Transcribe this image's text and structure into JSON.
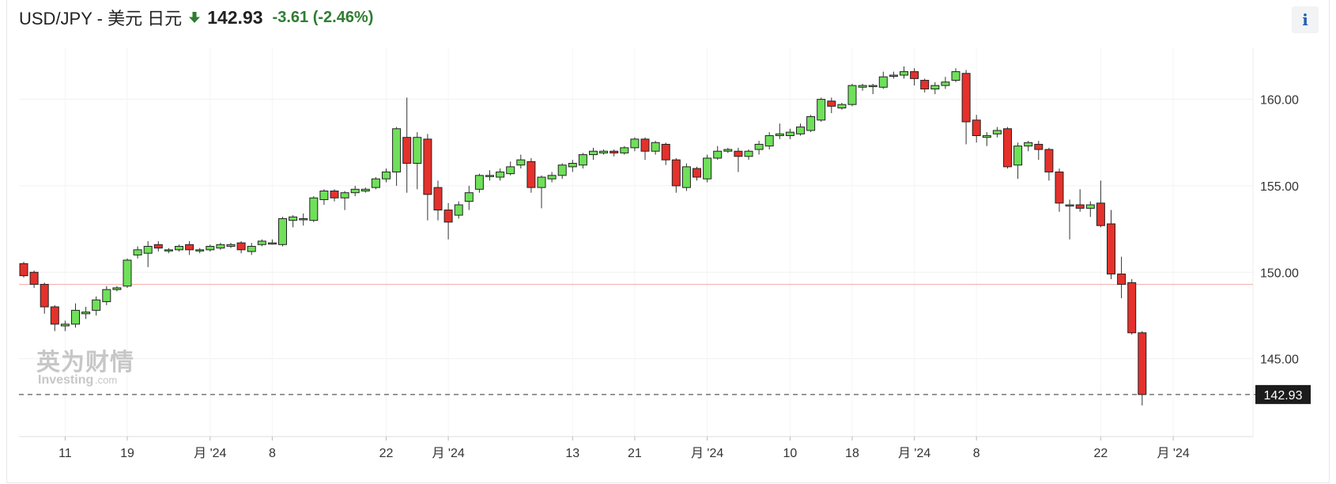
{
  "header": {
    "title": "USD/JPY - 美元 日元",
    "arrow_icon": "arrow-down-icon",
    "price": "142.93",
    "change": "-3.61 (-2.46%)",
    "change_color": "#2e7d32",
    "info_label": "i"
  },
  "colors": {
    "up": "#6fe05a",
    "down": "#e5312b",
    "ref_line": "#f2a9a9"
  },
  "watermark": {
    "line1": "英为财情",
    "line2": "Investing",
    "line3": ".com"
  },
  "chart_data": {
    "type": "candlestick",
    "title": "USD/JPY - 美元 日元",
    "ylim": [
      140.5,
      163
    ],
    "y_ticks": [
      145,
      150,
      155,
      160
    ],
    "y_tick_labels": [
      "145.00",
      "150.00",
      "155.00",
      "160.00"
    ],
    "x_tick_labels": [
      "11",
      "19",
      "月 '24",
      "8",
      "22",
      "月 '24",
      "13",
      "21",
      "月 '24",
      "10",
      "18",
      "月 '24",
      "8",
      "22",
      "月 '24"
    ],
    "x_tick_index": [
      4,
      10,
      18,
      24,
      35,
      41,
      53,
      59,
      66,
      74,
      80,
      86,
      92,
      104,
      111
    ],
    "reference_line": 149.3,
    "last_price": 142.93,
    "last_price_label": "142.93",
    "candles": [
      [
        150.5,
        149.8,
        150.6,
        149.7
      ],
      [
        150.0,
        149.3,
        150.1,
        149.1
      ],
      [
        149.3,
        148.0,
        149.4,
        147.6
      ],
      [
        148.0,
        147.0,
        148.1,
        146.6
      ],
      [
        146.9,
        147.0,
        147.2,
        146.6
      ],
      [
        147.0,
        147.8,
        148.2,
        146.8
      ],
      [
        147.6,
        147.7,
        148.0,
        147.3
      ],
      [
        147.8,
        148.4,
        148.6,
        147.5
      ],
      [
        148.3,
        149.0,
        149.2,
        148.1
      ],
      [
        149.0,
        149.1,
        149.2,
        148.9
      ],
      [
        149.2,
        150.7,
        150.8,
        149.1
      ],
      [
        151.0,
        151.3,
        151.5,
        150.8
      ],
      [
        151.1,
        151.5,
        151.8,
        150.3
      ],
      [
        151.6,
        151.4,
        151.8,
        151.2
      ],
      [
        151.3,
        151.3,
        151.4,
        151.1
      ],
      [
        151.3,
        151.5,
        151.6,
        151.2
      ],
      [
        151.6,
        151.3,
        151.8,
        151.0
      ],
      [
        151.3,
        151.3,
        151.4,
        151.1
      ],
      [
        151.3,
        151.5,
        151.6,
        151.2
      ],
      [
        151.4,
        151.6,
        151.7,
        151.3
      ],
      [
        151.5,
        151.6,
        151.7,
        151.4
      ],
      [
        151.7,
        151.3,
        151.8,
        151.1
      ],
      [
        151.2,
        151.5,
        151.7,
        151.0
      ],
      [
        151.6,
        151.8,
        151.9,
        151.5
      ],
      [
        151.7,
        151.7,
        151.9,
        151.6
      ],
      [
        151.6,
        153.1,
        153.2,
        151.5
      ],
      [
        153.0,
        153.2,
        153.3,
        152.6
      ],
      [
        153.1,
        153.1,
        153.4,
        152.7
      ],
      [
        153.0,
        154.3,
        154.4,
        152.9
      ],
      [
        154.2,
        154.7,
        154.8,
        153.9
      ],
      [
        154.7,
        154.3,
        154.8,
        154.1
      ],
      [
        154.3,
        154.6,
        154.7,
        153.6
      ],
      [
        154.6,
        154.8,
        155.0,
        154.4
      ],
      [
        154.7,
        154.8,
        154.9,
        154.6
      ],
      [
        154.9,
        155.4,
        155.5,
        154.8
      ],
      [
        155.4,
        155.8,
        156.0,
        155.2
      ],
      [
        155.8,
        158.3,
        158.4,
        155.0
      ],
      [
        157.8,
        156.3,
        160.1,
        154.6
      ],
      [
        156.3,
        157.8,
        158.1,
        154.8
      ],
      [
        157.7,
        154.5,
        158.0,
        153.0
      ],
      [
        154.9,
        153.6,
        155.3,
        153.0
      ],
      [
        153.6,
        152.9,
        154.0,
        151.9
      ],
      [
        153.3,
        153.9,
        154.1,
        153.1
      ],
      [
        154.1,
        154.6,
        155.0,
        153.6
      ],
      [
        154.8,
        155.6,
        155.7,
        154.6
      ],
      [
        155.6,
        155.6,
        155.9,
        155.3
      ],
      [
        155.5,
        155.8,
        156.0,
        155.3
      ],
      [
        155.7,
        156.1,
        156.4,
        155.6
      ],
      [
        156.2,
        156.5,
        156.8,
        156.0
      ],
      [
        156.4,
        154.9,
        156.6,
        154.6
      ],
      [
        154.9,
        155.5,
        155.6,
        153.7
      ],
      [
        155.4,
        155.6,
        155.8,
        155.2
      ],
      [
        155.6,
        156.2,
        156.3,
        155.4
      ],
      [
        156.1,
        156.3,
        156.5,
        155.8
      ],
      [
        156.2,
        156.8,
        156.9,
        156.0
      ],
      [
        156.8,
        157.0,
        157.2,
        156.5
      ],
      [
        156.9,
        157.0,
        157.1,
        156.8
      ],
      [
        157.0,
        156.9,
        157.1,
        156.7
      ],
      [
        156.9,
        157.2,
        157.3,
        156.8
      ],
      [
        157.2,
        157.7,
        157.8,
        157.0
      ],
      [
        157.7,
        157.0,
        157.8,
        156.5
      ],
      [
        157.0,
        157.5,
        157.6,
        156.8
      ],
      [
        157.4,
        156.5,
        157.5,
        156.2
      ],
      [
        156.5,
        155.0,
        156.6,
        154.6
      ],
      [
        154.9,
        156.1,
        156.3,
        154.7
      ],
      [
        156.0,
        155.5,
        156.1,
        155.3
      ],
      [
        155.4,
        156.6,
        156.8,
        155.2
      ],
      [
        156.6,
        157.0,
        157.3,
        156.5
      ],
      [
        157.0,
        157.1,
        157.2,
        156.9
      ],
      [
        157.0,
        156.7,
        157.2,
        155.8
      ],
      [
        156.7,
        157.0,
        157.1,
        156.5
      ],
      [
        157.1,
        157.4,
        157.6,
        156.8
      ],
      [
        157.3,
        157.9,
        158.1,
        157.1
      ],
      [
        157.9,
        158.0,
        158.6,
        157.7
      ],
      [
        157.9,
        158.1,
        158.3,
        157.7
      ],
      [
        158.0,
        158.4,
        158.6,
        157.9
      ],
      [
        158.2,
        159.0,
        159.1,
        158.1
      ],
      [
        158.8,
        160.0,
        160.1,
        158.7
      ],
      [
        159.9,
        159.6,
        160.1,
        159.2
      ],
      [
        159.5,
        159.7,
        159.8,
        159.4
      ],
      [
        159.7,
        160.8,
        160.9,
        159.6
      ],
      [
        160.7,
        160.8,
        160.9,
        160.5
      ],
      [
        160.8,
        160.8,
        160.9,
        160.3
      ],
      [
        160.7,
        161.3,
        161.6,
        160.6
      ],
      [
        161.4,
        161.4,
        161.6,
        161.2
      ],
      [
        161.4,
        161.6,
        161.9,
        161.2
      ],
      [
        161.6,
        161.2,
        161.8,
        160.8
      ],
      [
        161.1,
        160.6,
        161.2,
        160.4
      ],
      [
        160.6,
        160.8,
        161.0,
        160.3
      ],
      [
        160.8,
        161.0,
        161.3,
        160.6
      ],
      [
        161.1,
        161.6,
        161.8,
        161.0
      ],
      [
        161.5,
        158.7,
        161.7,
        157.4
      ],
      [
        158.8,
        157.9,
        159.1,
        157.5
      ],
      [
        157.8,
        157.9,
        158.1,
        157.3
      ],
      [
        158.0,
        158.2,
        158.4,
        157.8
      ],
      [
        158.3,
        156.1,
        158.4,
        156.0
      ],
      [
        156.2,
        157.3,
        157.5,
        155.4
      ],
      [
        157.3,
        157.5,
        157.6,
        157.0
      ],
      [
        157.4,
        157.1,
        157.6,
        156.5
      ],
      [
        157.1,
        155.8,
        157.2,
        155.3
      ],
      [
        155.8,
        154.0,
        156.0,
        153.5
      ],
      [
        153.9,
        153.9,
        154.2,
        151.9
      ],
      [
        153.9,
        153.7,
        154.8,
        153.5
      ],
      [
        153.7,
        153.9,
        154.1,
        153.2
      ],
      [
        154.0,
        152.7,
        155.3,
        152.6
      ],
      [
        152.8,
        149.9,
        153.6,
        149.6
      ],
      [
        149.9,
        149.3,
        150.9,
        148.5
      ],
      [
        149.4,
        146.5,
        149.6,
        146.4
      ],
      [
        146.5,
        142.93,
        146.6,
        142.3
      ]
    ]
  }
}
